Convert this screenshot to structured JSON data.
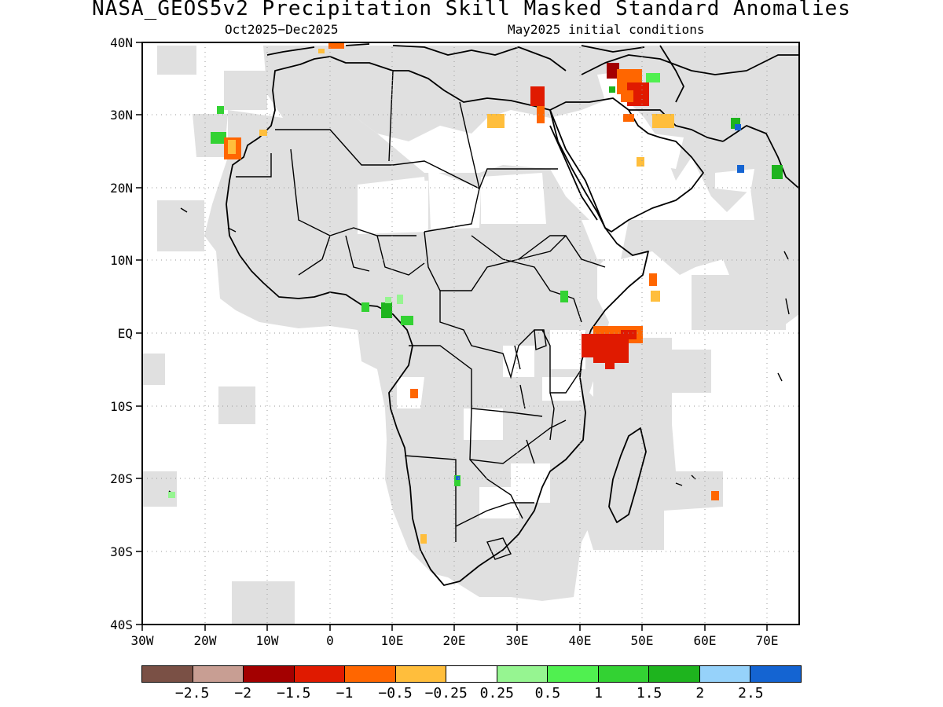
{
  "title": "NASA_GEOS5v2 Precipitation Skill Masked Standard Anomalies",
  "subtitle_left": "Oct2025−Dec2025",
  "subtitle_right": "May2025 initial conditions",
  "map": {
    "lon_range": [
      -30,
      75
    ],
    "lat_range": [
      -40,
      40
    ],
    "lon_ticks": [
      "30W",
      "20W",
      "10W",
      "0",
      "10E",
      "20E",
      "30E",
      "40E",
      "50E",
      "60E",
      "70E"
    ],
    "lat_ticks": [
      "40N",
      "30N",
      "20N",
      "10N",
      "EQ",
      "10S",
      "20S",
      "30S",
      "40S"
    ],
    "grid": true,
    "mask_color": "#e0e0e0",
    "ocean_color": "#ffffff"
  },
  "colorbar": {
    "colors": [
      "#7a5045",
      "#c89e93",
      "#a30000",
      "#e01a00",
      "#ff6600",
      "#ffbe3c",
      "#ffffff",
      "#96f591",
      "#50f050",
      "#33d233",
      "#1eb41e",
      "#96d2fa",
      "#1464d2"
    ],
    "labels": [
      "−2.5",
      "−2",
      "−1.5",
      "−1",
      "−0.5",
      "−0.25",
      "0.25",
      "0.5",
      "1",
      "1.5",
      "2",
      "2.5"
    ]
  }
}
